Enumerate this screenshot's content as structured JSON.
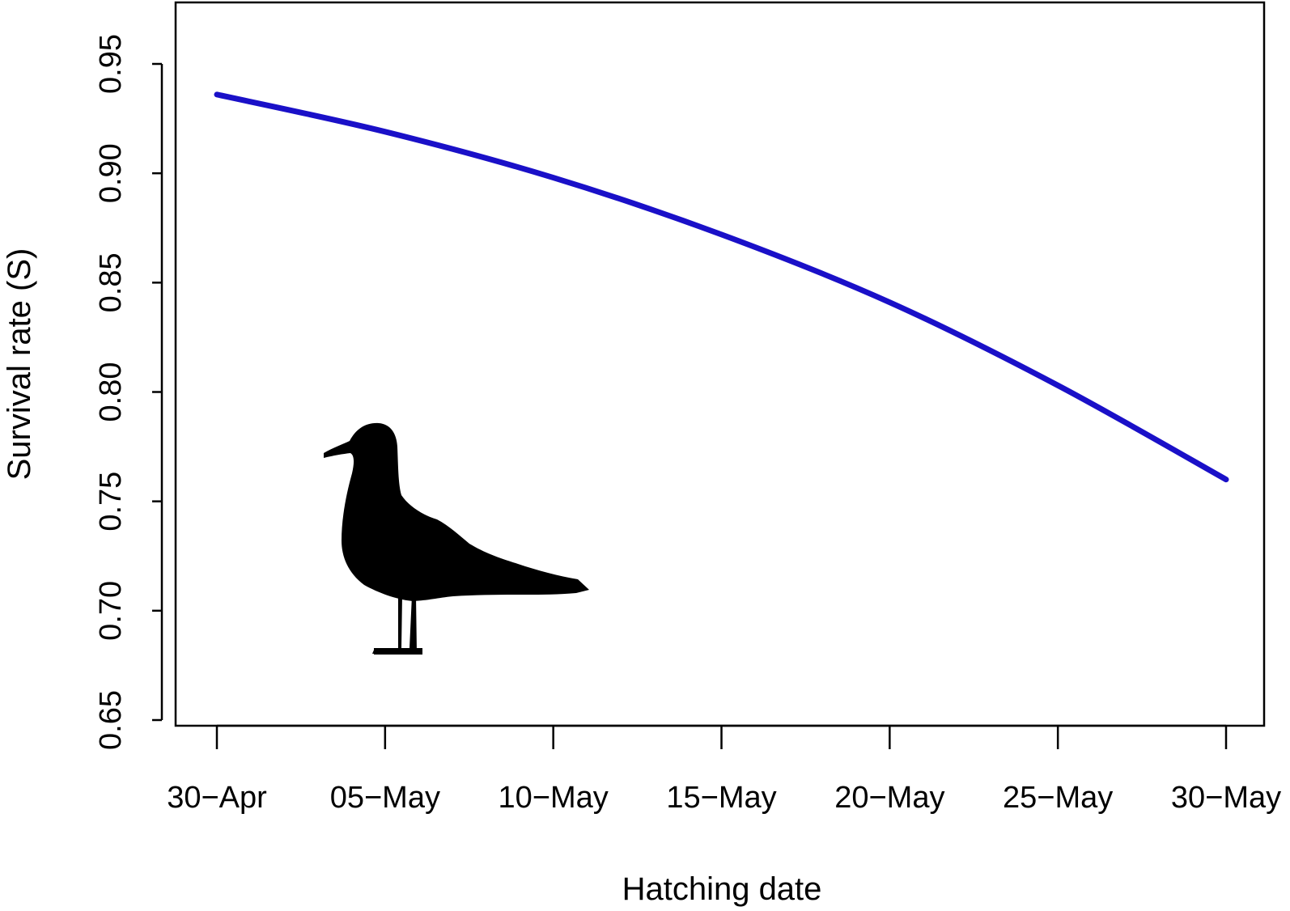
{
  "chart_data": {
    "type": "line",
    "title": "",
    "xlabel": "Hatching date",
    "ylabel": "Survival rate (S)",
    "x_ticks": [
      "30−Apr",
      "05−May",
      "10−May",
      "15−May",
      "20−May",
      "25−May",
      "30−May"
    ],
    "y_ticks": [
      "0.65",
      "0.70",
      "0.75",
      "0.80",
      "0.85",
      "0.90",
      "0.95"
    ],
    "x_range": [
      "30-Apr",
      "30-May"
    ],
    "ylim": [
      0.65,
      0.95
    ],
    "grid": false,
    "legend": "none",
    "series": [
      {
        "color": "#1a10c8",
        "x": [
          "30-Apr",
          "05-May",
          "10-May",
          "15-May",
          "20-May",
          "25-May",
          "30-May"
        ],
        "y": [
          0.936,
          0.919,
          0.898,
          0.872,
          0.841,
          0.803,
          0.76
        ]
      }
    ],
    "decoration": "gull-silhouette"
  }
}
